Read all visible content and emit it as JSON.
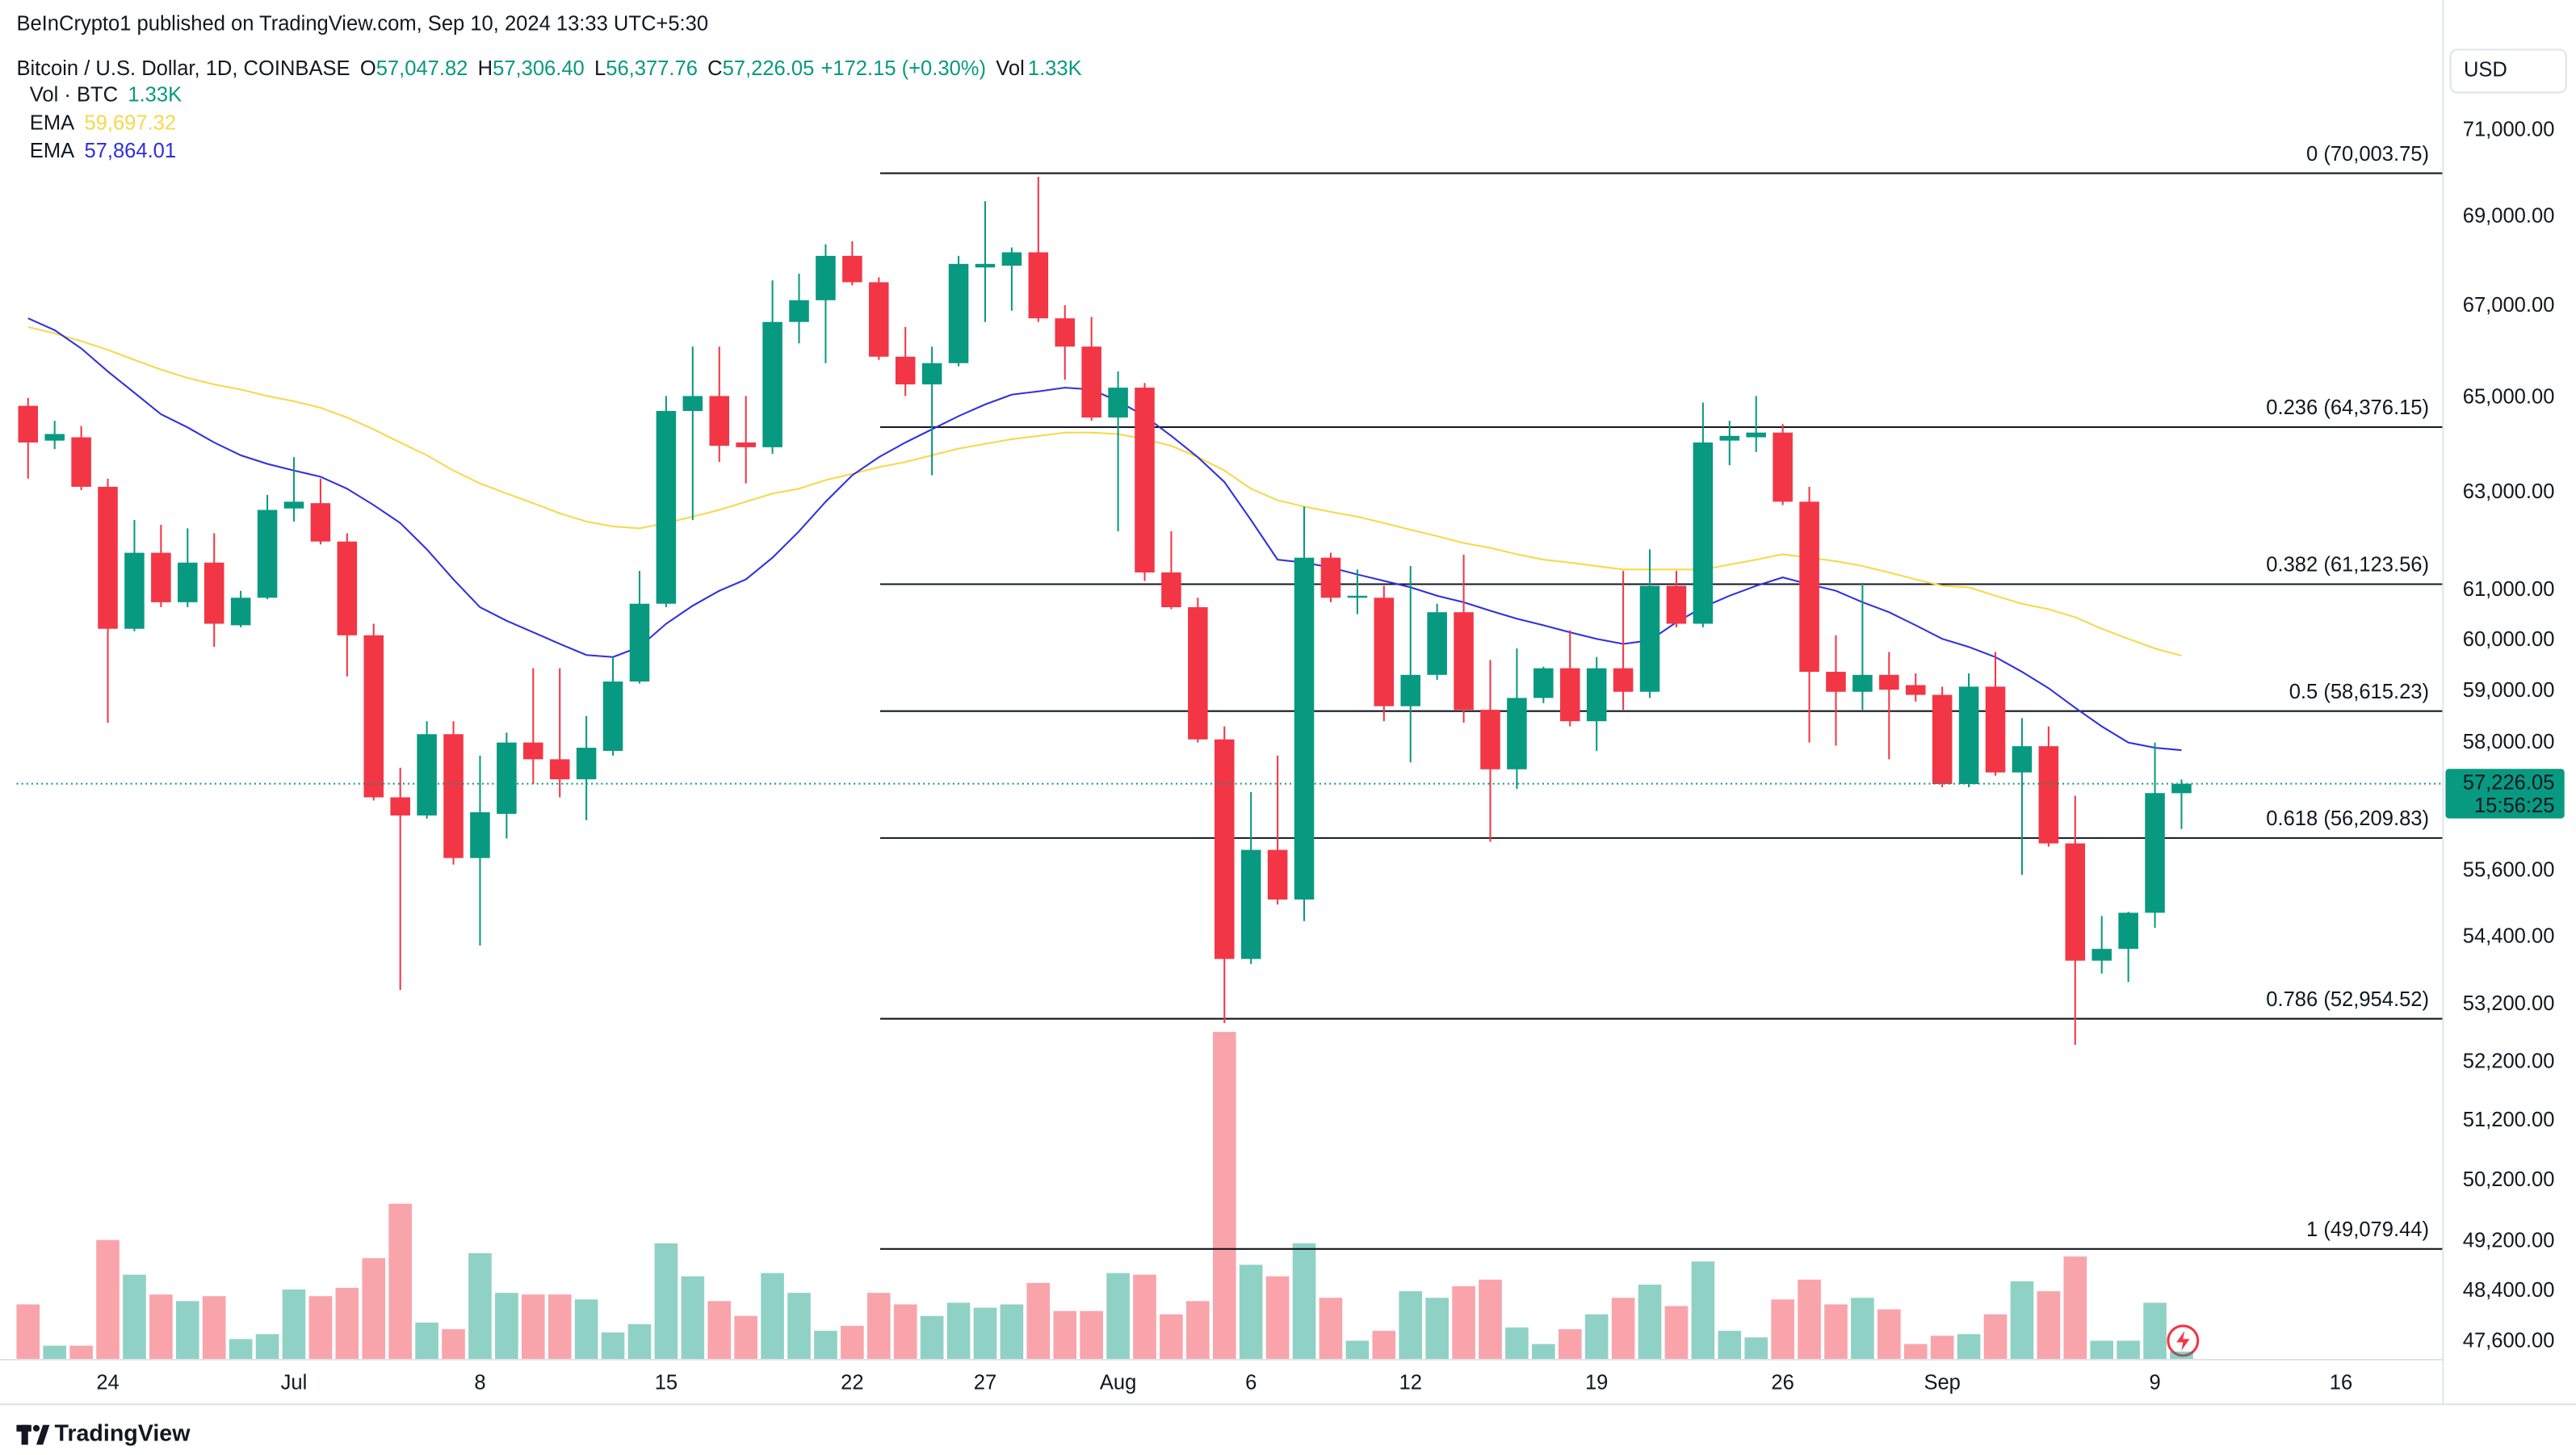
{
  "header": "BeInCrypto1 published on TradingView.com, Sep 10, 2024 13:33 UTC+5:30",
  "footer": "TradingView",
  "chart_data": {
    "type": "candlestick",
    "title": "Bitcoin / U.S. Dollar, 1D, COINBASE",
    "ohlc_legend": [
      {
        "key": "O",
        "value": "57,047.82"
      },
      {
        "key": "H",
        "value": "57,306.40"
      },
      {
        "key": "L",
        "value": "56,377.76"
      },
      {
        "key": "C",
        "value": "57,226.05"
      }
    ],
    "change": "+172.15 (+0.30%)",
    "volume_key": "Vol",
    "volume_name": "Vol · BTC",
    "volume_label": "1.33K",
    "currency": "USD",
    "categories": [
      null,
      null,
      null,
      "24",
      null,
      null,
      null,
      null,
      null,
      null,
      "Jul",
      null,
      null,
      null,
      null,
      null,
      null,
      "8",
      null,
      null,
      null,
      null,
      null,
      null,
      "15",
      null,
      null,
      null,
      null,
      null,
      null,
      "22",
      null,
      null,
      null,
      null,
      "27",
      null,
      null,
      null,
      null,
      "Aug",
      null,
      null,
      null,
      null,
      "6",
      null,
      null,
      null,
      null,
      null,
      "12",
      null,
      null,
      null,
      null,
      null,
      null,
      "19",
      null,
      null,
      null,
      null,
      null,
      null,
      "26",
      null,
      null,
      null,
      null,
      null,
      "Sep",
      null,
      null,
      null,
      null,
      null,
      null,
      null,
      "9",
      null,
      null,
      null,
      null,
      null,
      null,
      "16",
      null,
      null,
      null
    ],
    "open": [
      64830,
      64090,
      64160,
      63120,
      60230,
      61760,
      60760,
      61560,
      60300,
      60850,
      62670,
      62780,
      61990,
      60100,
      56970,
      56630,
      58170,
      55840,
      56660,
      58010,
      57690,
      57310,
      57850,
      59190,
      60730,
      64720,
      65040,
      64050,
      63950,
      66650,
      67130,
      68120,
      67530,
      65890,
      65290,
      65750,
      67860,
      67900,
      68200,
      66730,
      66110,
      64580,
      65220,
      61360,
      60660,
      58070,
      54010,
      55990,
      55080,
      61660,
      60850,
      60850,
      58710,
      59320,
      60560,
      58640,
      57500,
      58870,
      59450,
      58420,
      59450,
      58990,
      61090,
      60330,
      64090,
      64160,
      64260,
      62810,
      59380,
      58990,
      59320,
      59120,
      58930,
      57220,
      59090,
      57440,
      57940,
      56110,
      53980,
      54190,
      54840,
      57047.82,
      null,
      null,
      null,
      null,
      null,
      null,
      null,
      null,
      null
    ],
    "high": [
      65000,
      64510,
      64400,
      63290,
      62430,
      62330,
      62260,
      62160,
      60990,
      62950,
      63740,
      63290,
      62160,
      60330,
      57530,
      58420,
      58420,
      57760,
      58200,
      59450,
      59450,
      58520,
      59670,
      61390,
      65040,
      66110,
      66110,
      65040,
      67570,
      67720,
      68380,
      68450,
      67640,
      66540,
      66110,
      68120,
      69360,
      68310,
      69920,
      67020,
      66760,
      65570,
      65320,
      62200,
      60850,
      58320,
      57070,
      57760,
      62710,
      61760,
      61420,
      61090,
      61490,
      60730,
      61720,
      59610,
      59840,
      59480,
      60200,
      59670,
      61390,
      61830,
      61390,
      64900,
      64510,
      65040,
      64440,
      63120,
      60100,
      61150,
      59770,
      59350,
      59090,
      59350,
      59770,
      58480,
      58320,
      57000,
      54780,
      54860,
      58010,
      57306.4,
      null,
      null,
      null,
      null,
      null,
      null,
      null,
      null,
      null
    ],
    "low": [
      63290,
      63910,
      63050,
      58390,
      60180,
      60660,
      60660,
      59870,
      60260,
      60820,
      62400,
      61930,
      59290,
      56910,
      53460,
      56570,
      55720,
      54250,
      56200,
      57220,
      56970,
      56540,
      57760,
      59150,
      60660,
      62430,
      63640,
      63190,
      63810,
      66180,
      65750,
      67460,
      65820,
      65040,
      63360,
      65680,
      66650,
      66900,
      66650,
      65390,
      64510,
      62200,
      61190,
      60620,
      58010,
      52880,
      53920,
      54990,
      54690,
      60760,
      60520,
      58420,
      57630,
      59220,
      58390,
      56140,
      57130,
      58770,
      58320,
      57850,
      58640,
      58870,
      60260,
      60260,
      63570,
      63850,
      62740,
      58010,
      57950,
      58640,
      57690,
      58800,
      57160,
      57160,
      57380,
      55530,
      56050,
      52500,
      53750,
      53600,
      54570,
      56377.76,
      null,
      null,
      null,
      null,
      null,
      null,
      null,
      null,
      null
    ],
    "close": [
      64050,
      64230,
      63120,
      60230,
      61760,
      60760,
      61560,
      60330,
      60850,
      62640,
      62810,
      61990,
      60100,
      56970,
      56630,
      58170,
      55840,
      56690,
      58010,
      57690,
      57310,
      57910,
      59190,
      60730,
      64720,
      65040,
      63980,
      63950,
      66650,
      67130,
      68120,
      67530,
      65890,
      65290,
      65750,
      67940,
      67940,
      68200,
      66730,
      66110,
      64580,
      65220,
      61360,
      60660,
      58070,
      54010,
      55990,
      55080,
      61660,
      60850,
      60890,
      58710,
      59320,
      60560,
      58640,
      57500,
      58870,
      59450,
      58420,
      59450,
      58990,
      61090,
      60330,
      64050,
      64190,
      64260,
      62810,
      59380,
      58990,
      59320,
      59030,
      58930,
      57220,
      59090,
      57440,
      57940,
      56110,
      53980,
      54190,
      54840,
      57050,
      57226.05,
      null,
      null,
      null,
      null,
      null,
      null,
      null,
      null,
      null
    ],
    "volume": [
      9900,
      2400,
      2400,
      21600,
      15300,
      11700,
      10500,
      11400,
      3600,
      4500,
      12600,
      11400,
      12900,
      18300,
      28200,
      6600,
      5400,
      19200,
      12000,
      11700,
      11700,
      10800,
      4800,
      6300,
      21000,
      15000,
      10500,
      7800,
      15600,
      12000,
      5100,
      6000,
      12000,
      9900,
      7800,
      10200,
      9300,
      9900,
      13800,
      8700,
      8700,
      15600,
      15300,
      8100,
      10500,
      59400,
      17100,
      15000,
      21000,
      11100,
      3300,
      5100,
      12300,
      11100,
      13200,
      14400,
      5700,
      2700,
      5400,
      8100,
      11100,
      13500,
      9600,
      17700,
      5100,
      3900,
      10800,
      14400,
      9900,
      11100,
      9000,
      2700,
      4200,
      4500,
      8100,
      14100,
      12300,
      18600,
      3300,
      3300,
      10200,
      1330,
      null,
      null,
      null,
      null,
      null,
      null,
      null,
      null,
      null
    ],
    "up_color": "#089981",
    "down_color": "#f23645",
    "series": [
      {
        "name": "EMA",
        "color": "#f7d84a",
        "value_label": "59,697.32",
        "values": [
          66540,
          66400,
          66230,
          66040,
          65820,
          65610,
          65430,
          65290,
          65180,
          65040,
          64930,
          64790,
          64580,
          64330,
          64050,
          63780,
          63460,
          63190,
          62980,
          62780,
          62570,
          62400,
          62300,
          62260,
          62370,
          62500,
          62640,
          62810,
          62980,
          63080,
          63260,
          63390,
          63530,
          63640,
          63780,
          63920,
          64020,
          64120,
          64190,
          64260,
          64260,
          64230,
          64120,
          63980,
          63740,
          63460,
          63080,
          62840,
          62710,
          62600,
          62500,
          62370,
          62230,
          62100,
          61960,
          61860,
          61730,
          61620,
          61560,
          61490,
          61420,
          61420,
          61420,
          61420,
          61520,
          61620,
          61730,
          61660,
          61590,
          61490,
          61360,
          61220,
          61090,
          61060,
          60890,
          60730,
          60620,
          60460,
          60230,
          60030,
          59840,
          59697.32,
          null,
          null,
          null,
          null,
          null,
          null,
          null,
          null,
          null
        ]
      },
      {
        "name": "EMA",
        "color": "#2f2fe0",
        "value_label": "57,864.01",
        "values": [
          66730,
          66470,
          66070,
          65570,
          65110,
          64650,
          64370,
          64050,
          63780,
          63600,
          63460,
          63330,
          63080,
          62740,
          62370,
          61830,
          61220,
          60660,
          60390,
          60160,
          59930,
          59710,
          59670,
          59870,
          60330,
          60690,
          60990,
          61220,
          61660,
          62200,
          62810,
          63360,
          63740,
          64050,
          64330,
          64610,
          64860,
          65070,
          65140,
          65220,
          65180,
          64930,
          64610,
          64190,
          63740,
          63220,
          62430,
          61620,
          61560,
          61460,
          61320,
          61190,
          61060,
          60890,
          60760,
          60590,
          60430,
          60300,
          60160,
          60030,
          59930,
          60000,
          60360,
          60660,
          60890,
          61090,
          61260,
          61120,
          60990,
          60760,
          60560,
          60300,
          60030,
          59870,
          59670,
          59380,
          59060,
          58680,
          58320,
          58010,
          57910,
          57864.01,
          null,
          null,
          null,
          null,
          null,
          null,
          null,
          null,
          null
        ]
      }
    ],
    "fib_levels": [
      {
        "value": 70003.75,
        "label": "0 (70,003.75)"
      },
      {
        "value": 64376.15,
        "label": "0.236 (64,376.15)"
      },
      {
        "value": 61123.56,
        "label": "0.382 (61,123.56)"
      },
      {
        "value": 58615.23,
        "label": "0.5 (58,615.23)"
      },
      {
        "value": 56209.83,
        "label": "0.618 (56,209.83)"
      },
      {
        "value": 52954.52,
        "label": "0.786 (52,954.52)"
      },
      {
        "value": 49079.44,
        "label": "1 (49,079.44)"
      }
    ],
    "price_line": {
      "value": 57226.05,
      "label": "57,226.05",
      "countdown": "15:56:25"
    },
    "log_scale": true,
    "ylim": [
      47330,
      73240
    ],
    "yticks": [
      {
        "value": 71000,
        "label": "71,000.00"
      },
      {
        "value": 69000,
        "label": "69,000.00"
      },
      {
        "value": 67000,
        "label": "67,000.00"
      },
      {
        "value": 65000,
        "label": "65,000.00"
      },
      {
        "value": 63000,
        "label": "63,000.00"
      },
      {
        "value": 61000,
        "label": "61,000.00"
      },
      {
        "value": 60000,
        "label": "60,000.00"
      },
      {
        "value": 59000,
        "label": "59,000.00"
      },
      {
        "value": 58000,
        "label": "58,000.00"
      },
      {
        "value": 55600,
        "label": "55,600.00"
      },
      {
        "value": 54400,
        "label": "54,400.00"
      },
      {
        "value": 53200,
        "label": "53,200.00"
      },
      {
        "value": 52200,
        "label": "52,200.00"
      },
      {
        "value": 51200,
        "label": "51,200.00"
      },
      {
        "value": 50200,
        "label": "50,200.00"
      },
      {
        "value": 49200,
        "label": "49,200.00"
      },
      {
        "value": 48400,
        "label": "48,400.00"
      },
      {
        "value": 47600,
        "label": "47,600.00"
      }
    ]
  }
}
